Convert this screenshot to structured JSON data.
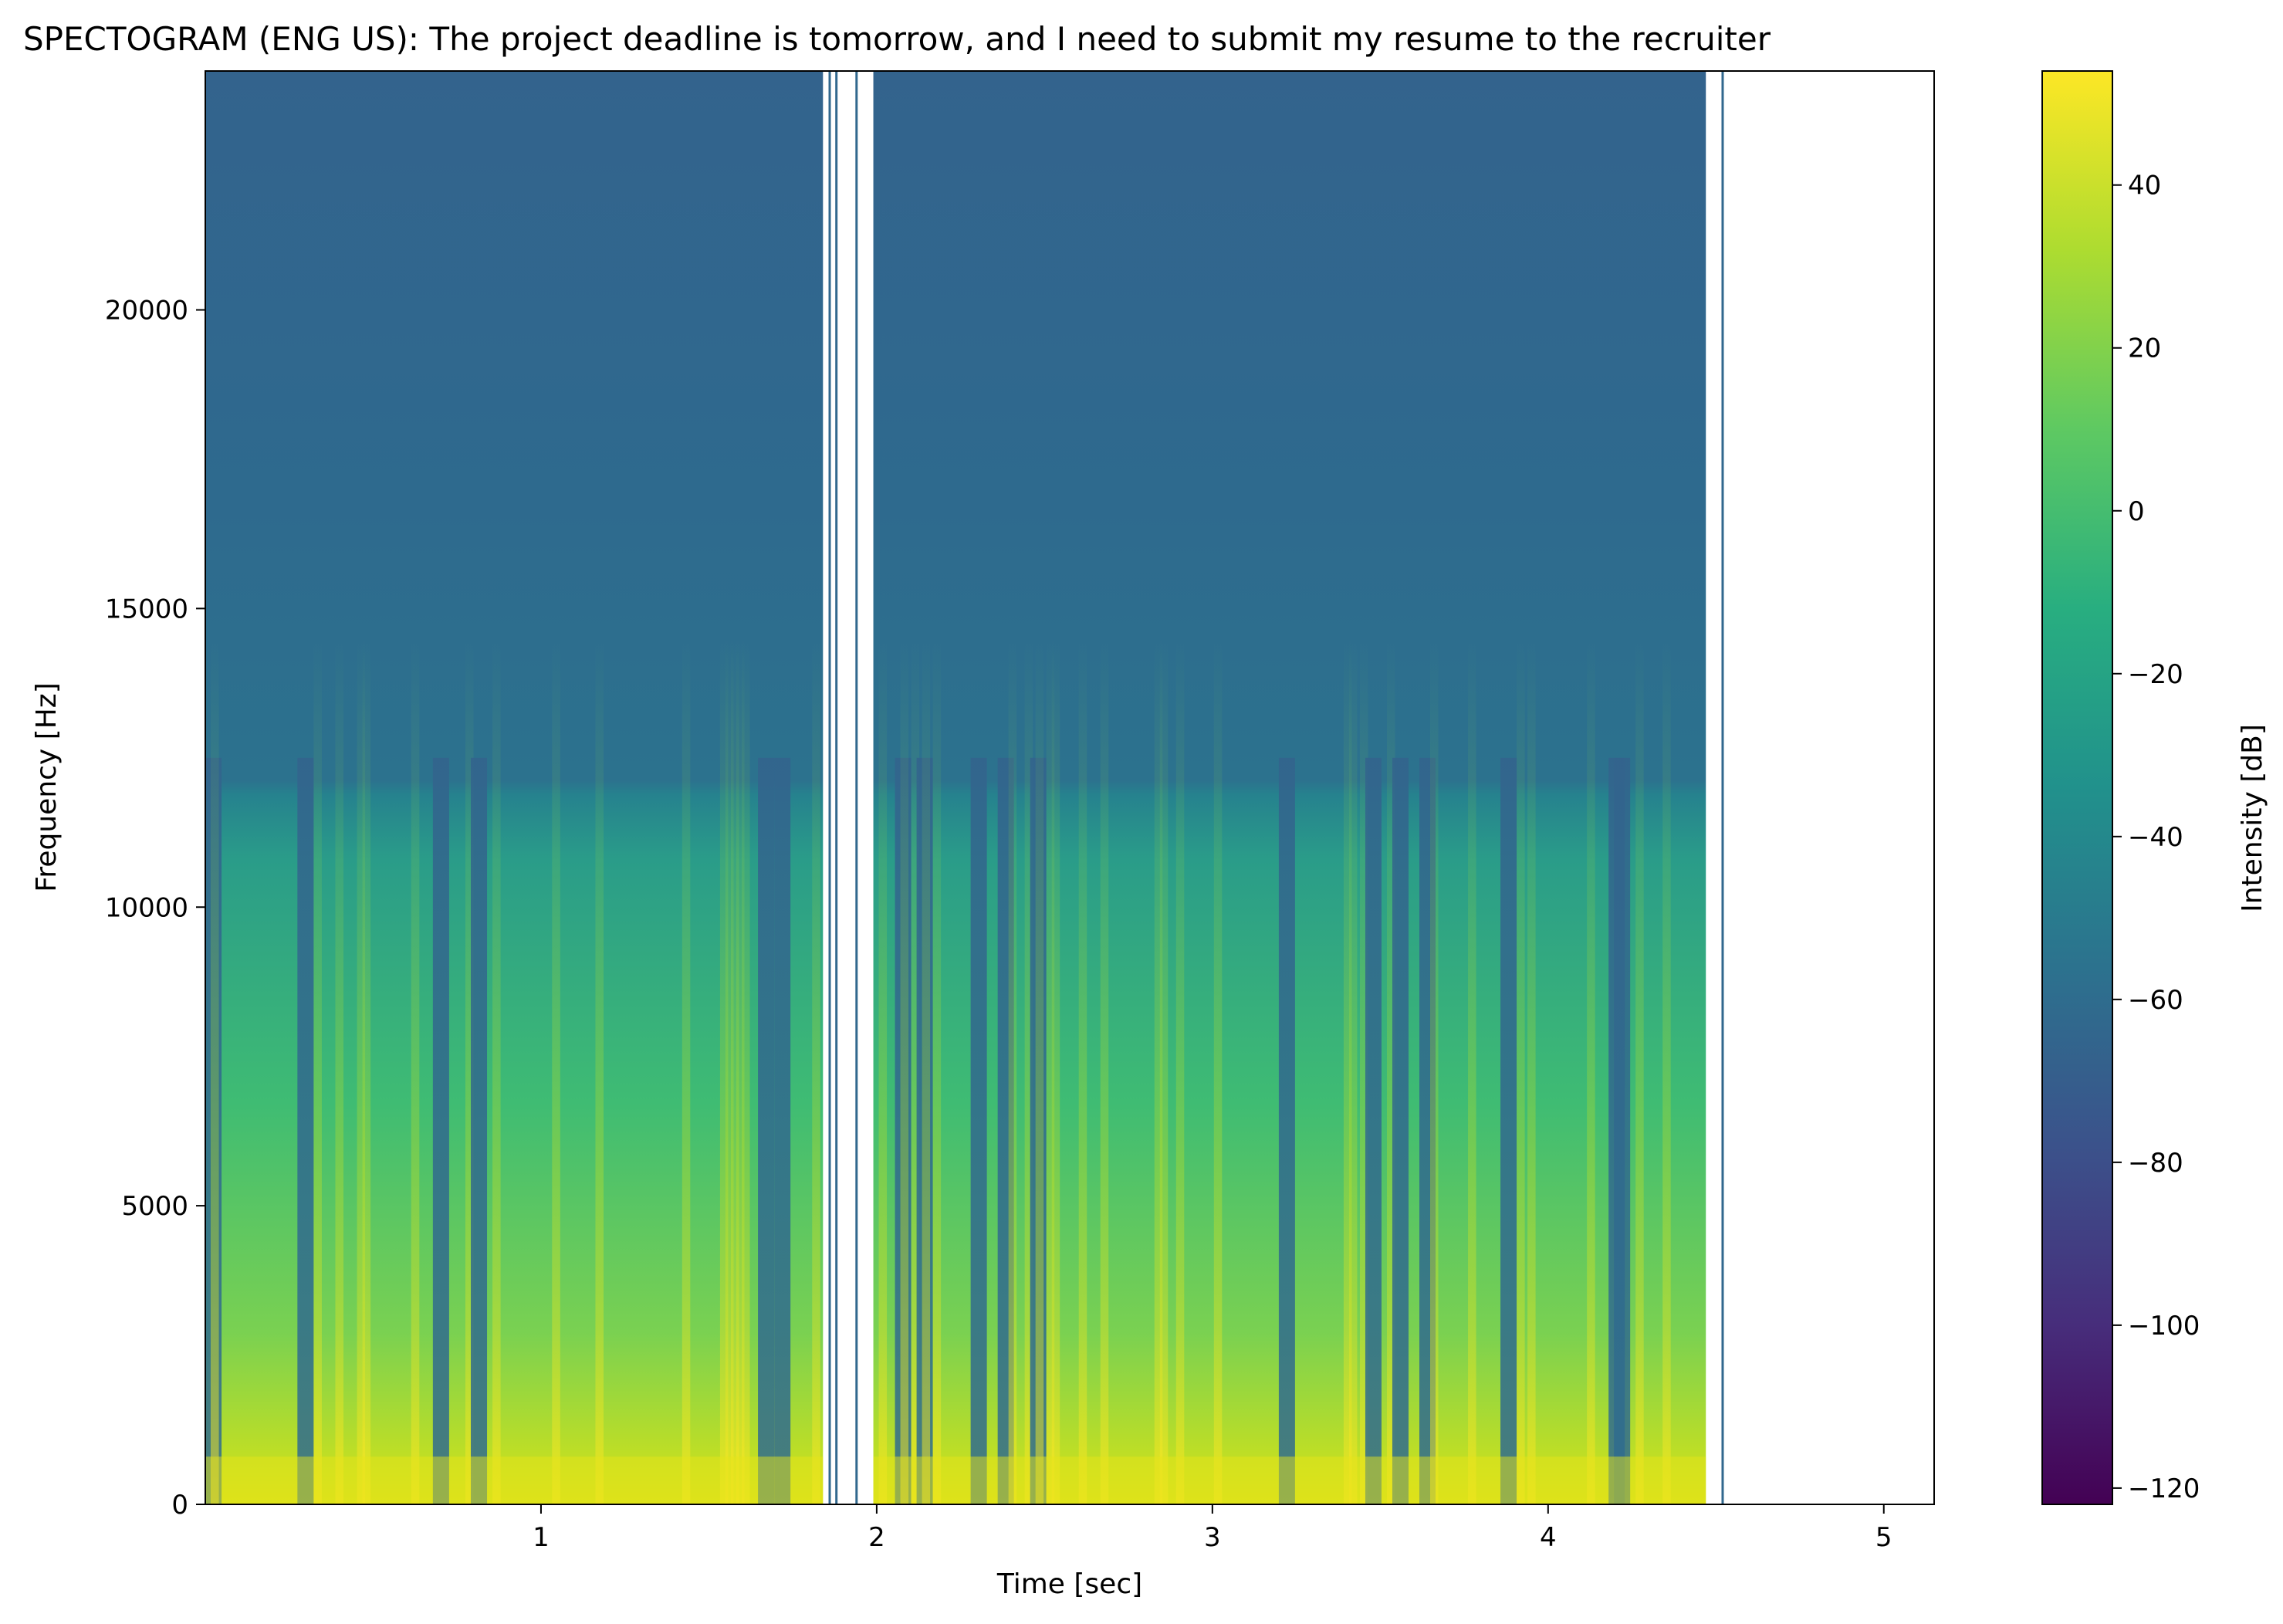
{
  "chart_data": {
    "type": "heatmap",
    "title": "SPECTOGRAM (ENG US): The project deadline is tomorrow, and I need to submit my resume to the recruiter",
    "xlabel": "Time [sec]",
    "ylabel": "Frequency [Hz]",
    "xlim": [
      0,
      5.15
    ],
    "ylim": [
      0,
      24000
    ],
    "x_ticks": [
      1,
      2,
      3,
      4,
      5
    ],
    "y_ticks": [
      0,
      5000,
      10000,
      15000,
      20000
    ],
    "colormap": "viridis",
    "colorbar": {
      "label": "Intensity [dB]",
      "range": [
        -122,
        54
      ],
      "ticks": [
        40,
        20,
        0,
        -20,
        -40,
        -60,
        -80,
        -100,
        -120
      ]
    },
    "speech_segments_sec": [
      [
        0.0,
        1.84
      ],
      [
        1.99,
        4.47
      ]
    ],
    "silence_markers_sec": [
      1.86,
      1.88,
      1.94,
      4.52
    ],
    "grid": false
  }
}
